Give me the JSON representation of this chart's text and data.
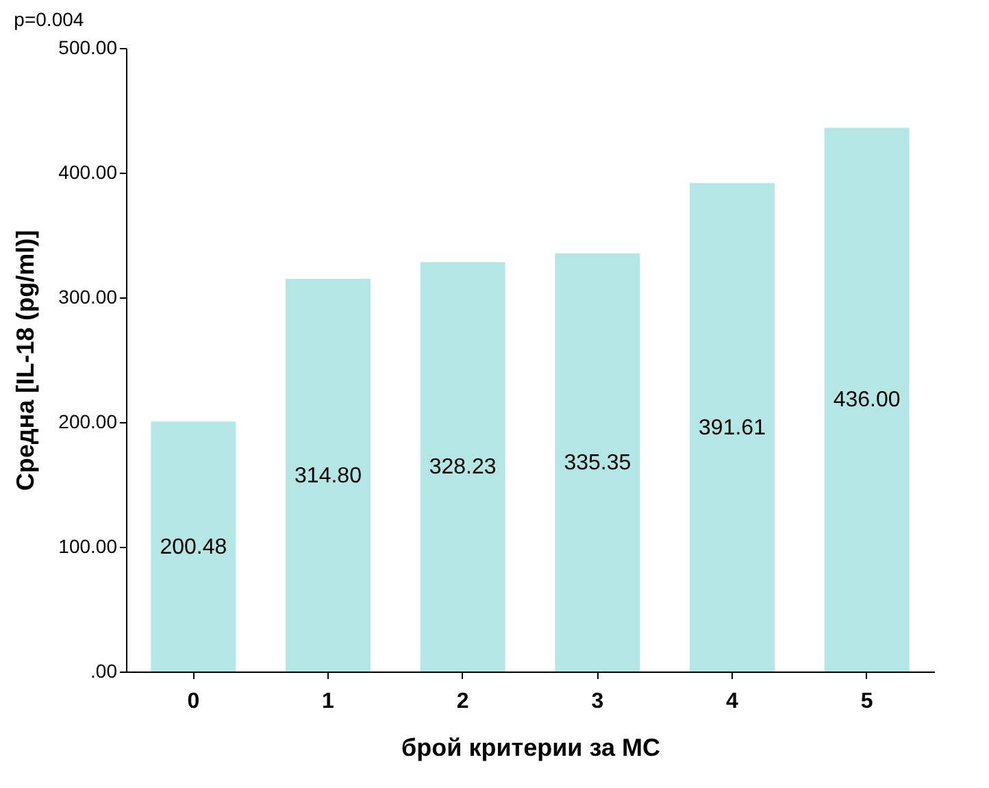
{
  "chart_data": {
    "type": "bar",
    "xlabel": "брой критерии за МС",
    "ylabel": "Средна [IL-18 (pg/ml)]",
    "annotations": [
      "p=0.004"
    ],
    "categories": [
      "0",
      "1",
      "2",
      "3",
      "4",
      "5"
    ],
    "values": [
      200.48,
      314.8,
      328.23,
      335.35,
      391.61,
      436.0
    ],
    "value_labels": [
      "200.48",
      "314.80",
      "328.23",
      "335.35",
      "391.61",
      "436.00"
    ],
    "color": "#b4e6e6",
    "ylim": [
      0,
      500
    ],
    "yticks": [
      {
        "value": 0,
        "label": ".00"
      },
      {
        "value": 100,
        "label": "100.00"
      },
      {
        "value": 200,
        "label": "200.00"
      },
      {
        "value": 300,
        "label": "300.00"
      },
      {
        "value": 400,
        "label": "400.00"
      },
      {
        "value": 500,
        "label": "500.00"
      }
    ],
    "grid": false
  }
}
